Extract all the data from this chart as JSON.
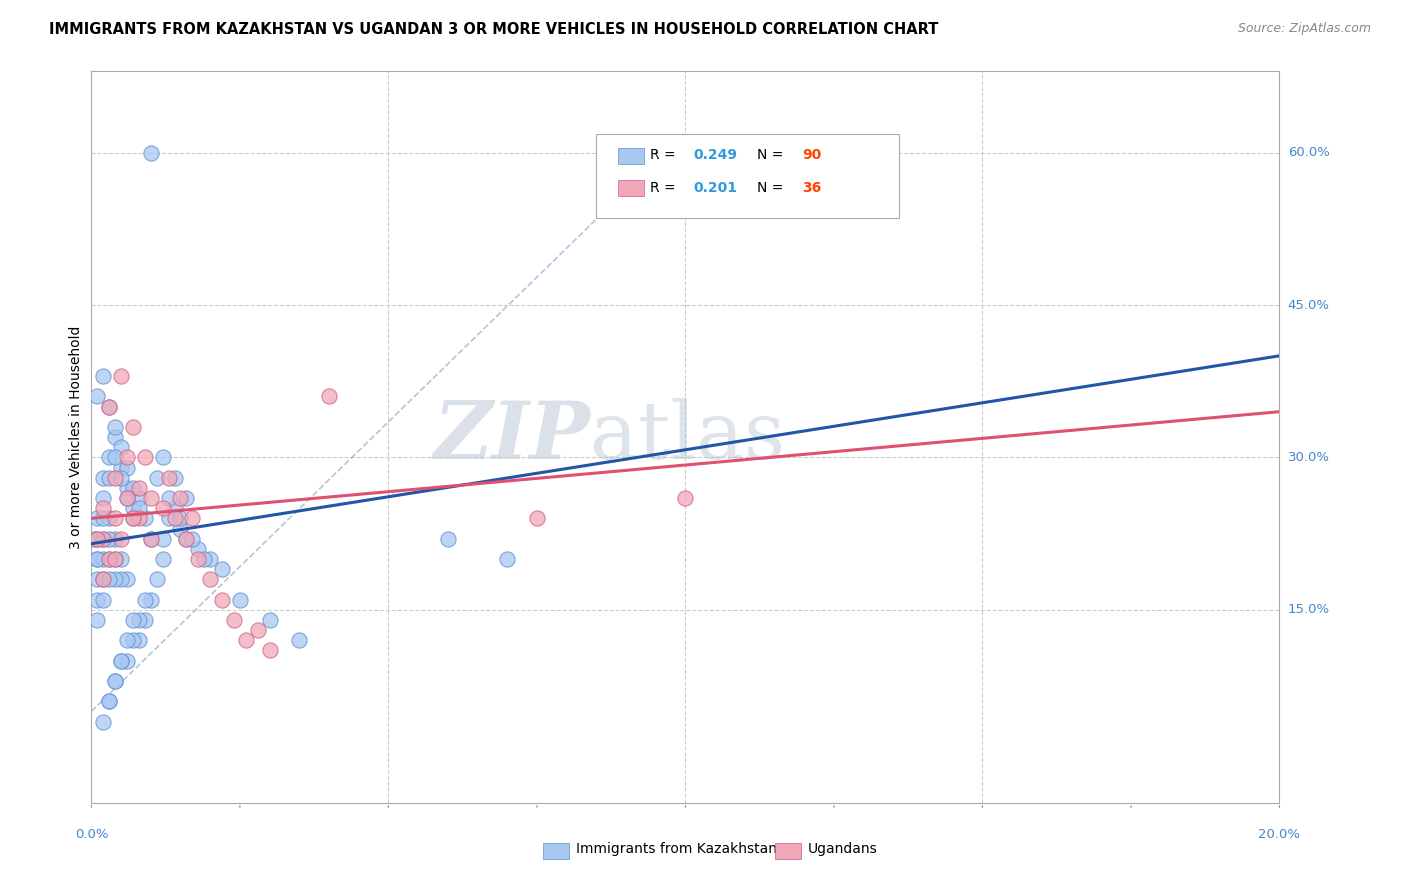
{
  "title": "IMMIGRANTS FROM KAZAKHSTAN VS UGANDAN 3 OR MORE VEHICLES IN HOUSEHOLD CORRELATION CHART",
  "source": "Source: ZipAtlas.com",
  "ylabel": "3 or more Vehicles in Household",
  "ytick_labels": [
    "15.0%",
    "30.0%",
    "45.0%",
    "60.0%"
  ],
  "ytick_values": [
    0.15,
    0.3,
    0.45,
    0.6
  ],
  "xmin": 0.0,
  "xmax": 0.2,
  "ymin": -0.04,
  "ymax": 0.68,
  "color_blue": "#A8C8F0",
  "color_blue_edge": "#6090D0",
  "color_pink": "#F0A8B8",
  "color_pink_edge": "#D06080",
  "color_trend_blue": "#2255AA",
  "color_trend_pink": "#E05070",
  "color_diag": "#99AACC",
  "watermark_zip_color": "#BDC9D8",
  "watermark_atlas_color": "#AABDCC"
}
